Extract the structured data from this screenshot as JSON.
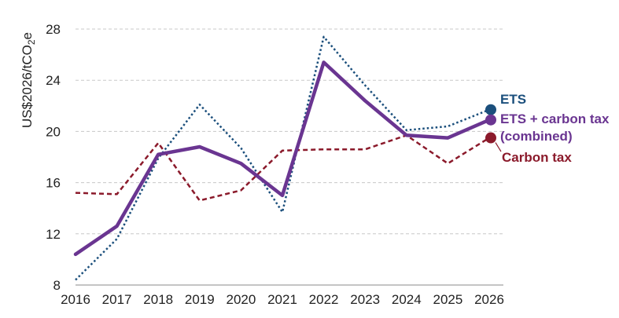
{
  "chart_data": {
    "type": "line",
    "title": "",
    "xlabel": "",
    "ylabel": "US$2026/tCO2e",
    "ylabel_parts": {
      "main": "US$2026/tCO",
      "sub": "2",
      "suffix": "e"
    },
    "x": [
      "2016",
      "2017",
      "2018",
      "2019",
      "2020",
      "2021",
      "2022",
      "2023",
      "2024",
      "2025",
      "2026"
    ],
    "ylim": [
      8,
      28
    ],
    "yticks": [
      "8",
      "12",
      "16",
      "20",
      "24",
      "28"
    ],
    "grid": true,
    "series": [
      {
        "name": "ETS",
        "label_lines": [
          "ETS"
        ],
        "style": "dotted",
        "color": "#1b4f7c",
        "values": [
          8.4,
          11.6,
          17.9,
          22.1,
          18.7,
          13.7,
          27.4,
          23.6,
          20.1,
          20.4,
          21.7
        ]
      },
      {
        "name": "ETS + carbon tax (combined)",
        "label_lines": [
          "ETS + carbon tax",
          "(combined)"
        ],
        "style": "solid",
        "color": "#6a3591",
        "values": [
          10.4,
          12.6,
          18.2,
          18.8,
          17.5,
          15.0,
          25.4,
          22.4,
          19.7,
          19.5,
          20.9
        ]
      },
      {
        "name": "Carbon tax",
        "label_lines": [
          "Carbon tax"
        ],
        "style": "dashed",
        "color": "#8b1a2b",
        "values": [
          15.2,
          15.1,
          19.1,
          14.6,
          15.4,
          18.5,
          18.6,
          18.6,
          19.7,
          17.5,
          19.5
        ]
      }
    ]
  }
}
